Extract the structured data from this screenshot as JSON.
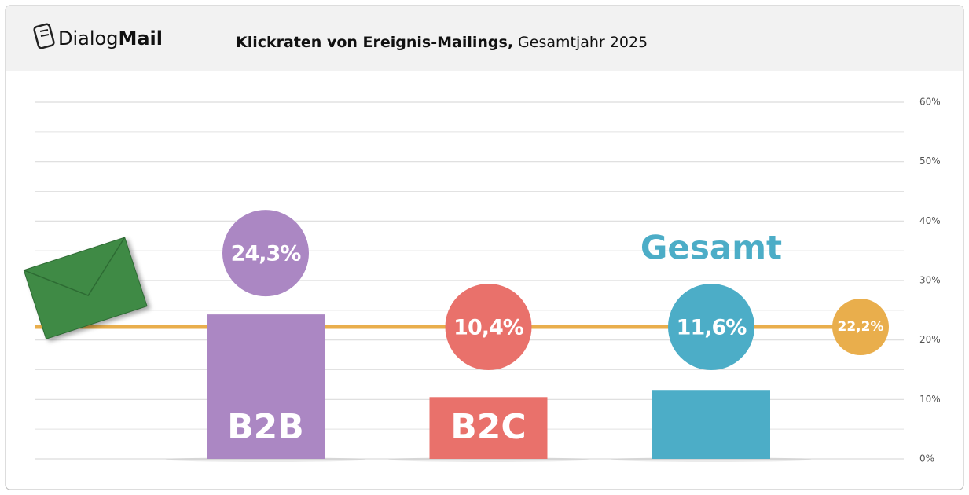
{
  "logo": {
    "regular": "Dialog",
    "bold": "Mail"
  },
  "chart_data": {
    "type": "bar",
    "title": "Klickraten von Ereignis-Mailings,",
    "subtitle": "Gesamtjahr 2025",
    "categories": [
      "B2B",
      "B2C",
      "Gesamt"
    ],
    "values": [
      24.3,
      10.4,
      11.6
    ],
    "value_labels": [
      "24,3%",
      "10,4%",
      "11,6%"
    ],
    "colors": [
      "#ab87c3",
      "#e9716b",
      "#4cadc7"
    ],
    "reference_line": {
      "value": 22.2,
      "label": "22,2%",
      "color": "#e9ae4c"
    },
    "ylim": [
      0,
      60
    ],
    "yticks": [
      {
        "value": 0,
        "label": "0%"
      },
      {
        "value": 10,
        "label": "10%"
      },
      {
        "value": 20,
        "label": "20%"
      },
      {
        "value": 30,
        "label": "30%"
      },
      {
        "value": 40,
        "label": "40%"
      },
      {
        "value": 50,
        "label": "50%"
      },
      {
        "value": 60,
        "label": "60%"
      }
    ],
    "minor_yticks": [
      5,
      15,
      25,
      35,
      45,
      55
    ],
    "grid": true
  }
}
